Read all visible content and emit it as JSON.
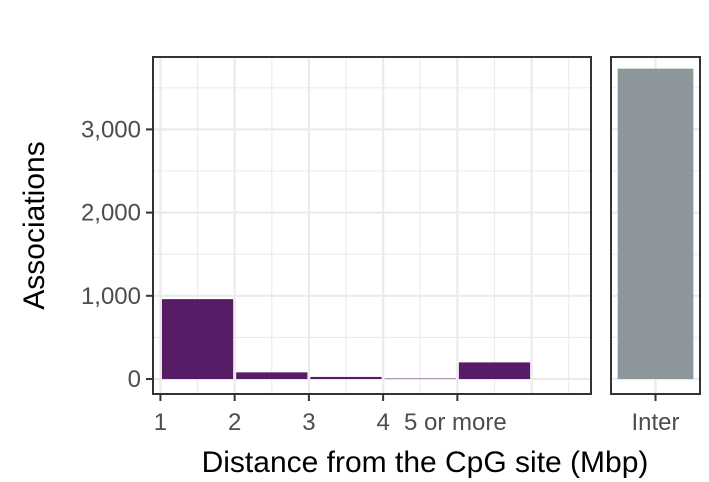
{
  "chart_data": {
    "type": "bar",
    "xlabel": "Distance from the CpG site (Mbp)",
    "ylabel": "Associations",
    "ylim": [
      -180,
      3870
    ],
    "y_ticks": [
      0,
      1000,
      2000,
      3000
    ],
    "y_tick_labels": [
      "0",
      "1,000",
      "2,000",
      "3,000"
    ],
    "grid": true,
    "panels": [
      {
        "x_ticks": [
          1,
          2,
          3,
          4
        ],
        "x_tick_labels": [
          "1",
          "2",
          "3",
          "4"
        ],
        "x_extra_label": "5 or more",
        "xlim": [
          0.9,
          6.8
        ],
        "bars": [
          {
            "x0": 1,
            "x1": 2,
            "value": 960
          },
          {
            "x0": 2,
            "x1": 3,
            "value": 80
          },
          {
            "x0": 3,
            "x1": 4,
            "value": 25
          },
          {
            "x0": 4,
            "x1": 5,
            "value": 5
          },
          {
            "x0": 5,
            "x1": 6,
            "value": 200
          }
        ],
        "bar_color": "#581c66"
      },
      {
        "categories": [
          "Inter"
        ],
        "values": [
          3730
        ],
        "bar_color": "#8d969a"
      }
    ]
  }
}
